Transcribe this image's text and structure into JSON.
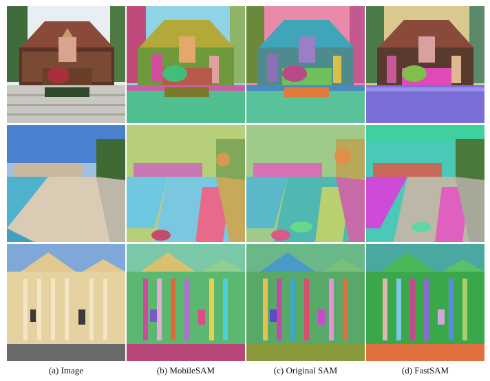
{
  "figure": {
    "captions": [
      "(a) Image",
      "(b) MobileSAM",
      "(c) Original SAM",
      "(d) FastSAM"
    ]
  },
  "colors": {
    "sky": "#a8cde0",
    "roof": "#8a4a3a",
    "stairs": "#c9c7c2",
    "sea": "#5fb6d3",
    "sand": "#d9cbb4",
    "facade": "#e6d2a0"
  }
}
